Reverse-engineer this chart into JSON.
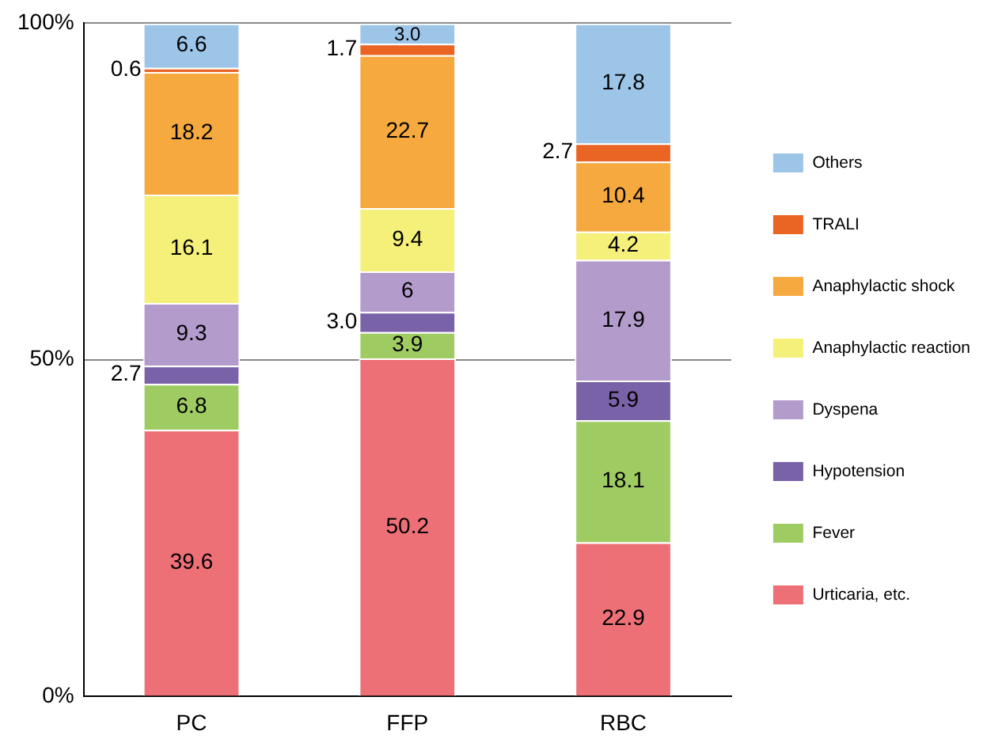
{
  "chart_data": {
    "type": "bar",
    "stacked": true,
    "categories": [
      "PC",
      "FFP",
      "RBC"
    ],
    "series": [
      {
        "name": "Urticaria, etc.",
        "color": "#ee7077",
        "values": [
          39.6,
          50.2,
          22.9
        ],
        "value_labels": [
          "39.6",
          "50.2",
          "22.9"
        ]
      },
      {
        "name": "Fever",
        "color": "#9fcc62",
        "values": [
          6.8,
          3.9,
          18.1
        ],
        "value_labels": [
          "6.8",
          "3.9",
          "18.1"
        ]
      },
      {
        "name": "Hypotension",
        "color": "#7a62a8",
        "values": [
          2.7,
          3.0,
          5.9
        ],
        "value_labels": [
          "2.7",
          "3.0",
          "5.9"
        ]
      },
      {
        "name": "Dyspena",
        "color": "#b39bcc",
        "values": [
          9.3,
          6,
          17.9
        ],
        "value_labels": [
          "9.3",
          "6",
          "17.9"
        ]
      },
      {
        "name": "Anaphylactic reaction",
        "color": "#f5f07a",
        "values": [
          16.1,
          9.4,
          4.2
        ],
        "value_labels": [
          "16.1",
          "9.4",
          "4.2"
        ]
      },
      {
        "name": "Anaphylactic shock",
        "color": "#f5a93f",
        "values": [
          18.2,
          22.7,
          10.4
        ],
        "value_labels": [
          "18.2",
          "22.7",
          "10.4"
        ]
      },
      {
        "name": "TRALI",
        "color": "#ea6523",
        "values": [
          0.6,
          1.7,
          2.7
        ],
        "value_labels": [
          "0.6",
          "1.7",
          "2.7"
        ]
      },
      {
        "name": "Others",
        "color": "#9cc5e8",
        "values": [
          6.6,
          3.0,
          17.8
        ],
        "value_labels": [
          "6.6",
          "3.0",
          "17.8"
        ]
      }
    ],
    "ylim": [
      0,
      100
    ],
    "yticks": [
      {
        "value": 0,
        "label": "0%"
      },
      {
        "value": 50,
        "label": "50%"
      },
      {
        "value": 100,
        "label": "100%"
      }
    ],
    "grid": "y",
    "legend": "right"
  }
}
